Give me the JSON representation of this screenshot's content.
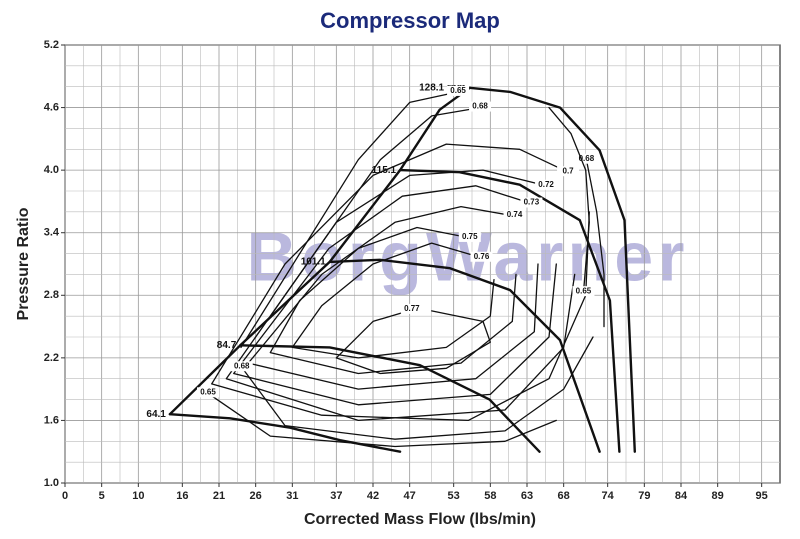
{
  "chart_data": {
    "type": "line",
    "title": "Compressor Map",
    "xlabel": "Corrected Mass Flow (lbs/min)",
    "ylabel": "Pressure Ratio",
    "watermark": "BorgWarner",
    "xlim": [
      0,
      97.5
    ],
    "ylim": [
      1.0,
      5.2
    ],
    "xticks": [
      0,
      5,
      10,
      16,
      21,
      26,
      31,
      37,
      42,
      47,
      53,
      58,
      63,
      68,
      74,
      79,
      84,
      89,
      95
    ],
    "yticks": [
      {
        "value": 1,
        "label": "1.0"
      },
      1.6,
      2.2,
      2.8,
      3.4,
      {
        "value": 4,
        "label": "4.0"
      },
      4.6,
      5.2
    ],
    "grid": true,
    "series": [
      {
        "name": "64.1",
        "color": "#111111",
        "line_width": 2.4,
        "x": [
          14.3,
          22.5,
          30.7,
          37.5,
          45.7
        ],
        "y": [
          1.66,
          1.62,
          1.53,
          1.41,
          1.3
        ]
      },
      {
        "name": "84.7",
        "color": "#111111",
        "line_width": 2.4,
        "x": [
          23.9,
          36.1,
          48.4,
          57.9,
          64.7
        ],
        "y": [
          2.32,
          2.3,
          2.13,
          1.8,
          1.3
        ]
      },
      {
        "name": "101.1",
        "color": "#111111",
        "line_width": 2.4,
        "x": [
          36.1,
          42.9,
          52.5,
          60.7,
          67.5,
          72.9
        ],
        "y": [
          3.12,
          3.14,
          3.06,
          2.85,
          2.37,
          1.3
        ]
      },
      {
        "name": "115.1",
        "color": "#111111",
        "line_width": 2.4,
        "x": [
          45.7,
          53.8,
          62.0,
          70.2,
          74.3,
          75.6
        ],
        "y": [
          4.0,
          3.98,
          3.86,
          3.52,
          2.75,
          1.3
        ]
      },
      {
        "name": "128.1 rpm",
        "color": "#111111",
        "line_width": 2.4,
        "x": [
          55.2,
          60.7,
          67.5,
          72.9,
          76.3,
          77.7
        ],
        "y": [
          4.79,
          4.75,
          4.6,
          4.19,
          3.52,
          1.3
        ]
      },
      {
        "color": "#111111",
        "line_width": 2.4,
        "x": [
          14.3,
          23.9,
          36.1,
          45.7,
          51.1,
          55.2
        ],
        "y": [
          1.66,
          2.32,
          3.12,
          4.0,
          4.58,
          4.79
        ]
      },
      {
        "name": "0.77",
        "color": "#111111",
        "line_width": 1.3,
        "x": [
          47.3,
          42,
          37,
          43,
          52,
          58,
          57,
          50
        ],
        "y": [
          2.66,
          2.55,
          2.2,
          2.05,
          2.1,
          2.35,
          2.55,
          2.65
        ]
      },
      {
        "name": "0.76",
        "color": "#111111",
        "line_width": 1.3,
        "x": [
          56.8,
          50,
          42,
          35,
          31,
          40,
          52,
          58,
          58.5
        ],
        "y": [
          3.16,
          3.3,
          3.1,
          2.7,
          2.3,
          2.2,
          2.3,
          2.6,
          2.95
        ]
      },
      {
        "name": "0.75",
        "color": "#111111",
        "line_width": 1.3,
        "x": [
          55.2,
          48,
          40,
          32,
          28,
          40,
          54,
          61,
          61.5
        ],
        "y": [
          3.35,
          3.45,
          3.25,
          2.75,
          2.25,
          2.05,
          2.15,
          2.55,
          3.0
        ]
      },
      {
        "name": "0.74",
        "color": "#111111",
        "line_width": 1.3,
        "x": [
          61.3,
          54,
          45,
          35,
          25,
          40,
          56,
          64,
          64.5
        ],
        "y": [
          3.56,
          3.65,
          3.5,
          3.0,
          2.15,
          1.9,
          2.0,
          2.45,
          3.1
        ]
      },
      {
        "name": "0.73",
        "color": "#111111",
        "line_width": 1.3,
        "x": [
          63.6,
          56,
          46,
          36,
          23,
          40,
          58,
          66,
          67
        ],
        "y": [
          3.68,
          3.85,
          3.75,
          3.25,
          2.05,
          1.75,
          1.85,
          2.4,
          3.1
        ]
      },
      {
        "name": "0.72",
        "color": "#111111",
        "line_width": 1.3,
        "x": [
          65.6,
          57,
          47,
          37,
          22,
          40,
          60,
          68,
          69.5
        ],
        "y": [
          3.85,
          4.0,
          3.95,
          3.5,
          2.0,
          1.6,
          1.7,
          2.3,
          3.0
        ]
      },
      {
        "name": "0.7",
        "color": "#111111",
        "line_width": 1.3,
        "x": [
          68.6,
          62,
          52,
          42,
          30,
          20,
          35,
          55,
          66,
          71,
          71.5
        ],
        "y": [
          3.98,
          4.2,
          4.25,
          3.95,
          3.1,
          1.95,
          1.65,
          1.6,
          2.0,
          2.8,
          3.6
        ]
      },
      {
        "name": "0.68",
        "color": "#111111",
        "line_width": 1.3,
        "x": [
          56.6,
          50,
          43,
          35,
          28
        ],
        "y": [
          4.6,
          4.52,
          4.1,
          3.3,
          2.6
        ]
      },
      {
        "name": "0.68",
        "color": "#111111",
        "line_width": 1.3,
        "x": [
          71.1,
          72.5,
          73.5,
          73.5
        ],
        "y": [
          4.1,
          3.6,
          3.0,
          2.5
        ]
      },
      {
        "name": "0.68",
        "color": "#111111",
        "line_width": 1.3,
        "x": [
          24.1,
          30,
          45,
          60,
          68,
          72
        ],
        "y": [
          2.11,
          1.55,
          1.42,
          1.5,
          1.9,
          2.4
        ]
      },
      {
        "name": "0.65",
        "color": "#111111",
        "line_width": 1.3,
        "x": [
          53.6,
          47,
          40,
          32,
          24
        ],
        "y": [
          4.75,
          4.65,
          4.1,
          3.2,
          2.3
        ]
      },
      {
        "name": "0.65",
        "color": "#111111",
        "line_width": 1.3,
        "x": [
          70.7,
          71.5,
          71,
          69,
          66
        ],
        "y": [
          2.83,
          3.5,
          4.0,
          4.35,
          4.6
        ]
      },
      {
        "name": "0.65",
        "color": "#111111",
        "line_width": 1.3,
        "x": [
          19.5,
          28,
          45,
          60,
          67
        ],
        "y": [
          1.86,
          1.45,
          1.35,
          1.4,
          1.6
        ]
      }
    ]
  }
}
